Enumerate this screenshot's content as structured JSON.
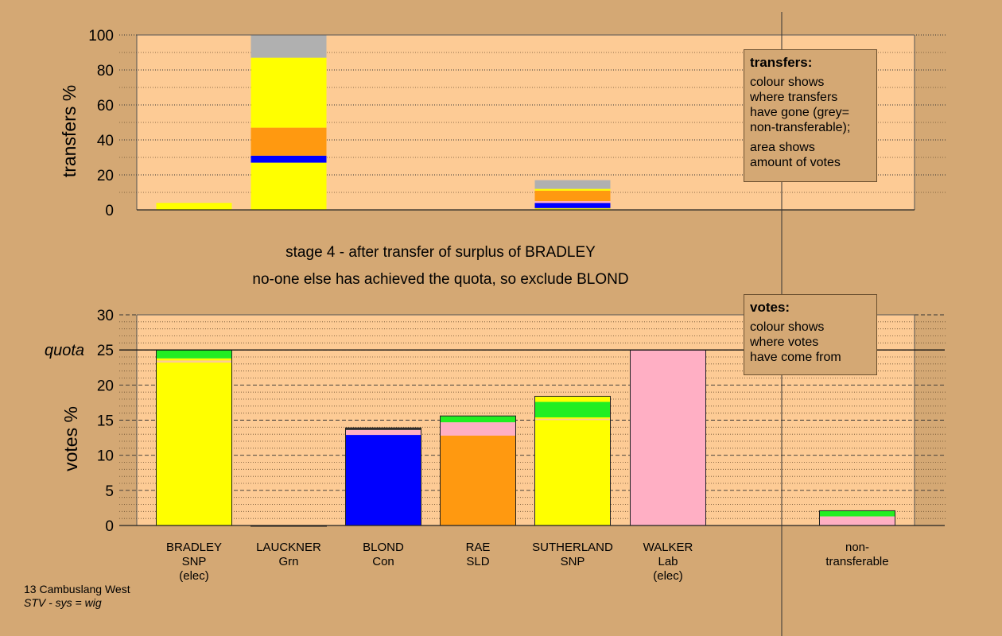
{
  "colors": {
    "background": "#d4a874",
    "plot_bg": "#fdcb95",
    "snp": "#ffff00",
    "green": "#22ee22",
    "con": "#0000ff",
    "sld": "#ff9910",
    "lab": "#ffafc4",
    "nontransferable": "#b0b0b0",
    "dark": "#333333"
  },
  "chart_data": [
    {
      "type": "bar",
      "stacked": true,
      "ylabel": "transfers %",
      "ylim": [
        0,
        100
      ],
      "yticks": [
        0,
        20,
        40,
        60,
        80,
        100
      ],
      "grid": "dotted",
      "categories": [
        "BRADLEY",
        "LAUCKNER",
        "BLOND",
        "RAE",
        "SUTHERLAND",
        "WALKER",
        "",
        "non-transferable"
      ],
      "bars": [
        {
          "category": "BRADLEY",
          "segments": [
            {
              "color": "snp",
              "value": 4
            }
          ]
        },
        {
          "category": "LAUCKNER",
          "segments": [
            {
              "color": "snp",
              "value": 27
            },
            {
              "color": "con",
              "value": 4
            },
            {
              "color": "sld",
              "value": 16
            },
            {
              "color": "snp",
              "value": 40
            },
            {
              "color": "nontransferable",
              "value": 13
            }
          ]
        },
        {
          "category": "SUTHERLAND",
          "segments": [
            {
              "color": "snp",
              "value": 1
            },
            {
              "color": "con",
              "value": 3
            },
            {
              "color": "lab",
              "value": 1
            },
            {
              "color": "sld",
              "value": 6
            },
            {
              "color": "snp",
              "value": 1
            },
            {
              "color": "nontransferable",
              "value": 5
            }
          ]
        }
      ]
    },
    {
      "type": "bar",
      "stacked": true,
      "ylabel": "votes %",
      "ylim": [
        0,
        30
      ],
      "yticks": [
        0,
        5,
        10,
        15,
        20,
        25,
        30
      ],
      "quota": 25,
      "quota_label": "quota",
      "grid": "dashed",
      "categories": [
        "BRADLEY",
        "LAUCKNER",
        "BLOND",
        "RAE",
        "SUTHERLAND",
        "WALKER",
        "",
        "non-transferable"
      ],
      "bars": [
        {
          "category": "BRADLEY",
          "segments": [
            {
              "color": "snp",
              "value": 23.2
            },
            {
              "color": "plot_bg",
              "value": 0.3
            },
            {
              "color": "snp",
              "value": 0.3
            },
            {
              "color": "green",
              "value": 1.2
            }
          ]
        },
        {
          "category": "LAUCKNER",
          "segments": [
            {
              "color": "green",
              "value": 0
            }
          ]
        },
        {
          "category": "BLOND",
          "segments": [
            {
              "color": "con",
              "value": 12.9
            },
            {
              "color": "lab",
              "value": 0.7
            },
            {
              "color": "dark",
              "value": 0.3
            }
          ]
        },
        {
          "category": "RAE",
          "segments": [
            {
              "color": "sld",
              "value": 12.8
            },
            {
              "color": "lab",
              "value": 1.9
            },
            {
              "color": "green",
              "value": 0.9
            }
          ]
        },
        {
          "category": "SUTHERLAND",
          "segments": [
            {
              "color": "snp",
              "value": 15.0
            },
            {
              "color": "plot_bg",
              "value": 0.2
            },
            {
              "color": "snp",
              "value": 0.2
            },
            {
              "color": "green",
              "value": 2.2
            },
            {
              "color": "snp",
              "value": 0.8
            }
          ]
        },
        {
          "category": "WALKER",
          "segments": [
            {
              "color": "lab",
              "value": 25
            }
          ]
        },
        {
          "category": "non-transferable",
          "segments": [
            {
              "color": "lab",
              "value": 1.3
            },
            {
              "color": "green",
              "value": 0.8
            }
          ]
        }
      ]
    }
  ],
  "candidates": [
    {
      "name": "BRADLEY",
      "party": "SNP",
      "status": "(elec)"
    },
    {
      "name": "LAUCKNER",
      "party": "Grn",
      "status": ""
    },
    {
      "name": "BLOND",
      "party": "Con",
      "status": ""
    },
    {
      "name": "RAE",
      "party": "SLD",
      "status": ""
    },
    {
      "name": "SUTHERLAND",
      "party": "SNP",
      "status": ""
    },
    {
      "name": "WALKER",
      "party": "Lab",
      "status": "(elec)"
    },
    {
      "name": "",
      "party": "",
      "status": ""
    },
    {
      "name": "non-",
      "party": "transferable",
      "status": ""
    }
  ],
  "stage_text": {
    "line1": "stage 4 - after transfer of surplus of BRADLEY",
    "line2": "no-one else has achieved the quota, so exclude BLOND"
  },
  "transfers_legend": {
    "title": "transfers:",
    "lines1": [
      "colour shows",
      "where transfers",
      "have gone (grey=",
      "non-transferable);"
    ],
    "lines2": [
      "area shows",
      "amount of votes"
    ]
  },
  "votes_legend": {
    "title": "votes:",
    "lines": [
      "colour shows",
      "where votes",
      "have come from"
    ]
  },
  "footer": {
    "ward": "13 Cambuslang West",
    "system": "STV - sys = wig"
  }
}
